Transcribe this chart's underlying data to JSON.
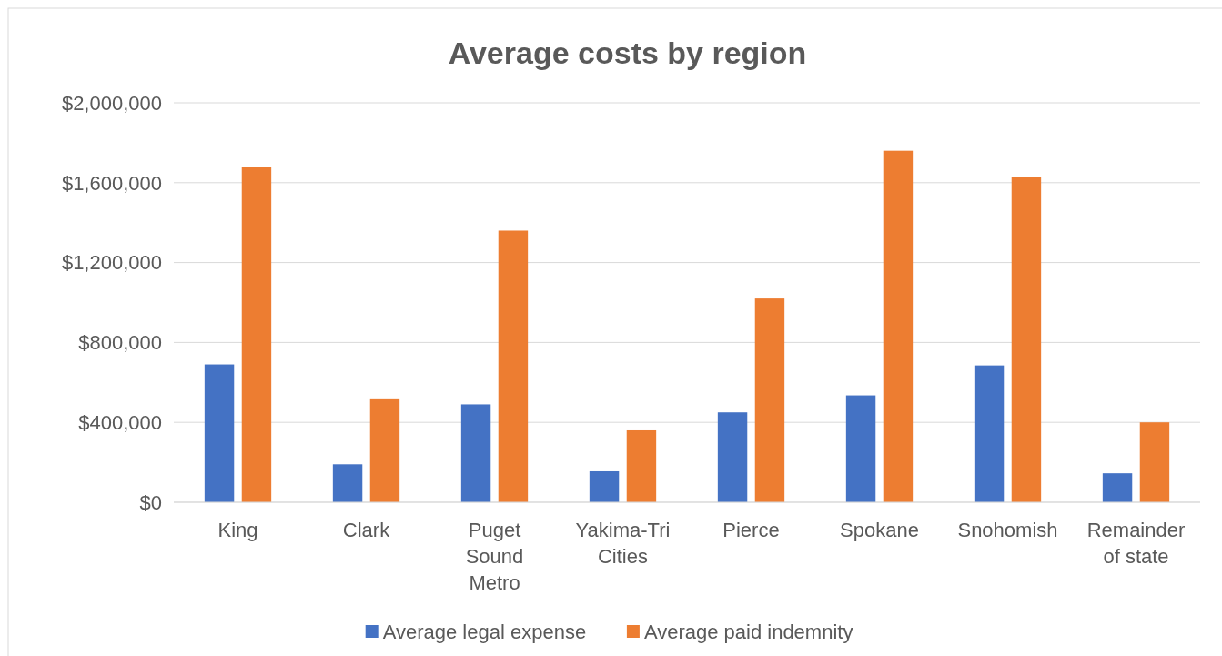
{
  "chart_data": {
    "type": "bar",
    "title": "Average costs by region",
    "categories": [
      "King",
      "Clark",
      "Puget Sound Metro",
      "Yakima-Tri Cities",
      "Pierce",
      "Spokane",
      "Snohomish",
      "Remainder of state"
    ],
    "series": [
      {
        "name": "Average legal expense",
        "color": "#4472c4",
        "values": [
          690000,
          190000,
          490000,
          155000,
          450000,
          535000,
          685000,
          145000
        ]
      },
      {
        "name": "Average paid indemnity",
        "color": "#ed7d31",
        "values": [
          1680000,
          520000,
          1360000,
          360000,
          1020000,
          1760000,
          1630000,
          400000
        ]
      }
    ],
    "ylim": [
      0,
      2000000
    ],
    "yticks": [
      {
        "value": 0,
        "label": "$0"
      },
      {
        "value": 400000,
        "label": "$400,000"
      },
      {
        "value": 800000,
        "label": "$800,000"
      },
      {
        "value": 1200000,
        "label": "$1,200,000"
      },
      {
        "value": 1600000,
        "label": "$1,600,000"
      },
      {
        "value": 2000000,
        "label": "$2,000,000"
      }
    ],
    "grid": "y",
    "legend": "bottom"
  }
}
